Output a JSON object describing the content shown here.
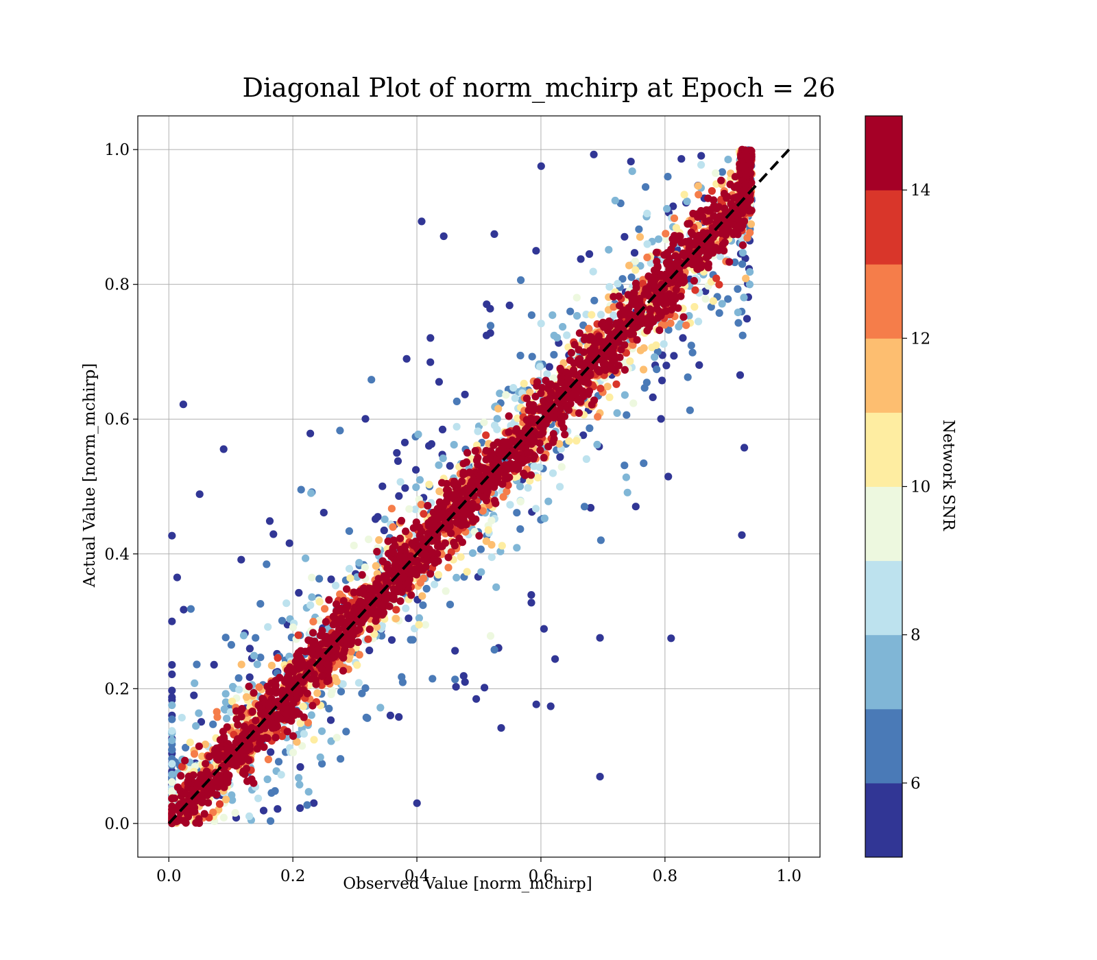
{
  "chart_data": {
    "type": "scatter",
    "title": "Diagonal Plot of norm_mchirp at Epoch = 26",
    "xlabel": "Observed Value [norm_mchirp]",
    "ylabel": "Actual Value [norm_mchirp]",
    "xlim": [
      -0.05,
      1.05
    ],
    "ylim": [
      -0.05,
      1.05
    ],
    "x_ticks": [
      "0.0",
      "0.2",
      "0.4",
      "0.6",
      "0.8",
      "1.0"
    ],
    "y_ticks": [
      "0.0",
      "0.2",
      "0.4",
      "0.6",
      "0.8",
      "1.0"
    ],
    "grid": true,
    "reference_line": {
      "style": "dashed",
      "color": "#000000",
      "from": [
        0,
        0
      ],
      "to": [
        1,
        1
      ]
    },
    "colorbar": {
      "label": "Network SNR",
      "range": [
        5,
        15
      ],
      "tick_labels": [
        "6",
        "8",
        "10",
        "12",
        "14"
      ],
      "ticks": [
        6,
        8,
        10,
        12,
        14
      ],
      "bins": [
        {
          "from": 5,
          "to": 6,
          "color": "#313695"
        },
        {
          "from": 6,
          "to": 7,
          "color": "#4a7ab7"
        },
        {
          "from": 7,
          "to": 8,
          "color": "#80b6d6"
        },
        {
          "from": 8,
          "to": 9,
          "color": "#bde2ee"
        },
        {
          "from": 9,
          "to": 10,
          "color": "#edf8df"
        },
        {
          "from": 10,
          "to": 11,
          "color": "#feeda1"
        },
        {
          "from": 11,
          "to": 12,
          "color": "#fdbe70"
        },
        {
          "from": 12,
          "to": 13,
          "color": "#f57d4a"
        },
        {
          "from": 13,
          "to": 14,
          "color": "#d9362a"
        },
        {
          "from": 14,
          "to": 15,
          "color": "#a50026"
        }
      ]
    },
    "series": [
      {
        "description_of_distribution": "scatter of predicted vs true values; high SNR points hug the diagonal, low SNR points spread widely",
        "points_snr_color_mapped": true,
        "clusters": [
          {
            "snr_range": [
              14,
              15
            ],
            "spread": 0.04
          },
          {
            "snr_range": [
              12,
              14
            ],
            "spread": 0.08
          },
          {
            "snr_range": [
              10,
              12
            ],
            "spread": 0.13
          },
          {
            "snr_range": [
              8,
              10
            ],
            "spread": 0.2
          },
          {
            "snr_range": [
              5,
              8
            ],
            "spread": 0.35
          }
        ]
      }
    ]
  }
}
